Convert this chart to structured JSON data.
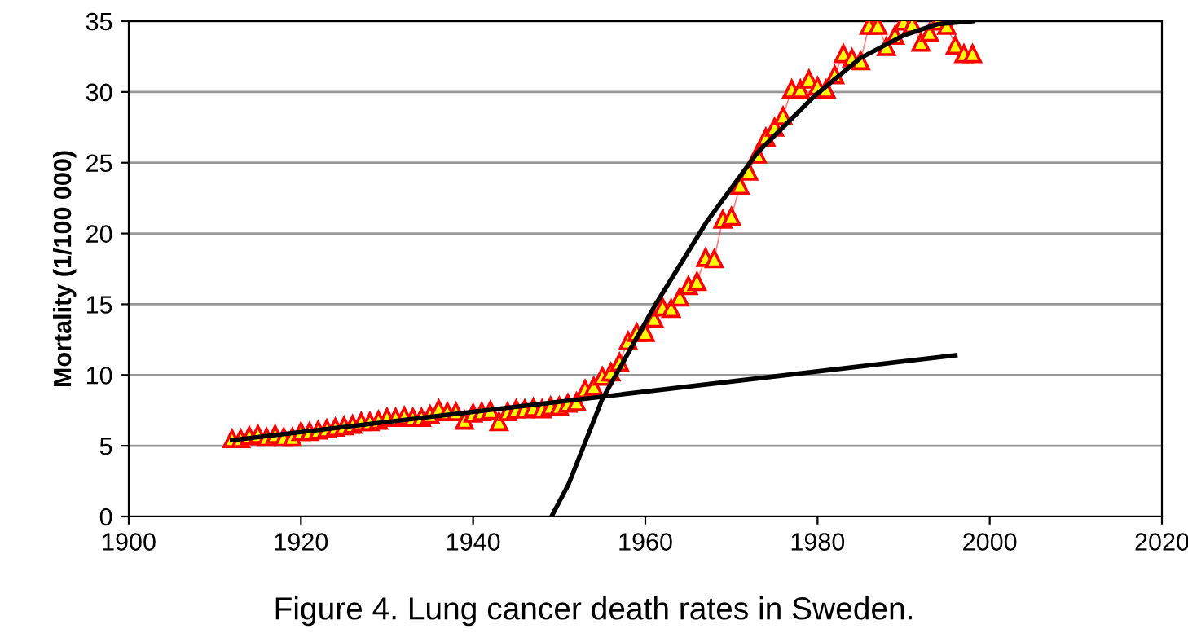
{
  "chart_data": {
    "type": "line",
    "ylabel": "Mortality (1/100 000)",
    "annotations": [
      "Figure 4. Lung cancer death rates in Sweden."
    ],
    "xlim": [
      1900,
      2020
    ],
    "xticks": [
      1900,
      1920,
      1940,
      1960,
      1980,
      2000,
      2020
    ],
    "ylim": [
      0,
      35
    ],
    "yticks": [
      0,
      5,
      10,
      15,
      20,
      25,
      30,
      35
    ],
    "grid": "y",
    "legend": false,
    "series": [
      {
        "marker": "triangle",
        "color": "#ff0000",
        "x": [
          1912,
          1913,
          1914,
          1915,
          1916,
          1917,
          1918,
          1919,
          1920,
          1921,
          1922,
          1923,
          1924,
          1925,
          1926,
          1927,
          1928,
          1929,
          1930,
          1931,
          1932,
          1933,
          1934,
          1935,
          1936,
          1937,
          1938,
          1939,
          1940,
          1941,
          1942,
          1943,
          1944,
          1945,
          1946,
          1947,
          1948,
          1949,
          1950,
          1951,
          1952,
          1953,
          1954,
          1955,
          1956,
          1957,
          1958,
          1959,
          1960,
          1961,
          1962,
          1963,
          1964,
          1965,
          1966,
          1967,
          1968,
          1969,
          1970,
          1971,
          1972,
          1973,
          1974,
          1975,
          1976,
          1977,
          1978,
          1979,
          1980,
          1981,
          1982,
          1983,
          1984,
          1985,
          1986,
          1987,
          1988,
          1989,
          1990,
          1991,
          1992,
          1993,
          1994,
          1995,
          1996,
          1997,
          1998
        ],
        "values": [
          5.5,
          5.5,
          5.7,
          5.8,
          5.6,
          5.8,
          5.6,
          5.6,
          6.0,
          6.0,
          6.1,
          6.2,
          6.3,
          6.4,
          6.5,
          6.7,
          6.7,
          6.8,
          7.0,
          7.0,
          7.1,
          7.0,
          7.0,
          7.2,
          7.6,
          7.4,
          7.4,
          6.8,
          7.3,
          7.4,
          7.5,
          6.7,
          7.4,
          7.6,
          7.6,
          7.7,
          7.6,
          7.8,
          7.8,
          8.0,
          8.1,
          9.0,
          9.2,
          9.9,
          10.2,
          10.9,
          12.4,
          13.0,
          13.0,
          14.0,
          14.8,
          14.7,
          15.5,
          16.3,
          16.6,
          18.3,
          18.2,
          21.0,
          21.2,
          23.4,
          24.4,
          25.6,
          26.8,
          27.5,
          28.3,
          30.2,
          30.2,
          30.9,
          30.4,
          30.2,
          31.2,
          32.7,
          32.4,
          32.2,
          34.7,
          34.7,
          33.2,
          34.0,
          35.0,
          34.8,
          33.5,
          34.2,
          35.0,
          34.7,
          33.3,
          32.7,
          32.7
        ]
      },
      {
        "marker": "none",
        "color": "#000000",
        "x": [
          1912,
          1996
        ],
        "values": [
          5.4,
          11.4
        ]
      },
      {
        "marker": "none",
        "color": "#000000",
        "x": [
          1949.1,
          1951.1,
          1955,
          1961.2,
          1967.1,
          1973,
          1979.8,
          1985,
          1990,
          1994,
          1998
        ],
        "values": [
          0,
          2.3,
          8.3,
          15.0,
          20.8,
          25.7,
          29.8,
          32.4,
          34.0,
          34.8,
          35.0
        ]
      }
    ]
  }
}
